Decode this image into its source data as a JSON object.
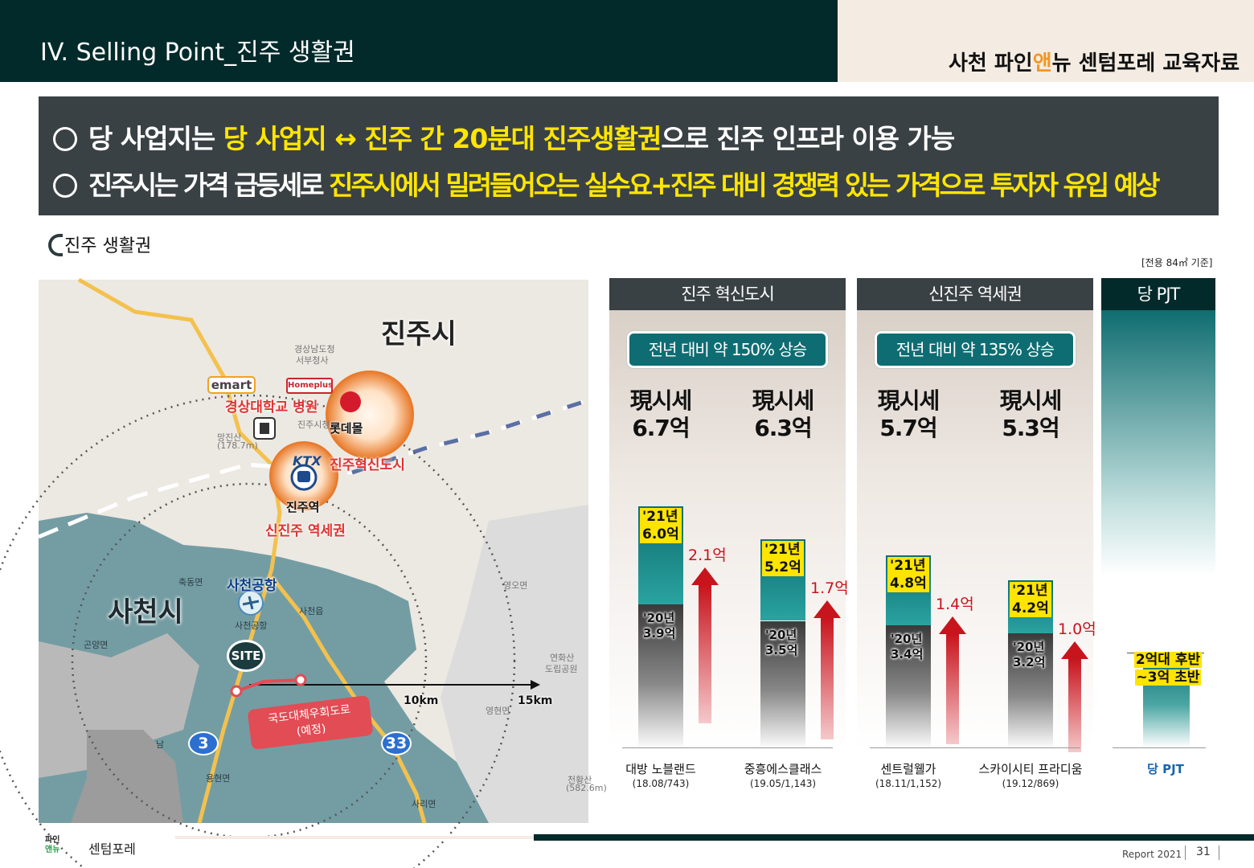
{
  "header": {
    "title": "IV. Selling Point_진주 생활권",
    "doc_title_pre": "사천 파인",
    "doc_title_accent": "앤",
    "doc_title_post": "뉴 센텀포레 교육자료",
    "accent_color": "#f39623"
  },
  "banner": {
    "line1": {
      "pre": "당 사업지는 ",
      "highlight": "당 사업지 ↔ 진주 간 20분대 진주생활권",
      "post": "으로 진주 인프라 이용 가능"
    },
    "line2": {
      "pre": "진주시는 가격 급등세로 ",
      "highlight1": "진주시에서 밀려들어오는 실수요",
      "mid": "+",
      "highlight2": "진주 대비 경쟁력 있는 가격으로 투자자 유입 예상"
    },
    "highlight_color": "#ffe600"
  },
  "section": {
    "title": "진주 생활권",
    "basis": "[전용 84㎡ 기준]"
  },
  "map": {
    "city_jinju": "진주시",
    "city_sacheon": "사천시",
    "emart": "emart",
    "homeplus": "Homeplus",
    "hospital": "경상대학교 병원",
    "lotte_mall": "롯데몰",
    "ktx": "KTX",
    "jinju_innovation": "진주혁신도시",
    "jinju_station": "진주역",
    "new_jinju_station_area": "신진주 역세권",
    "sacheon_airport": "사천공항",
    "site": "SITE",
    "road_label_1": "국도대체우회도로",
    "road_label_2": "(예정)",
    "km10": "10km",
    "km15": "15km",
    "route3": "3",
    "route33": "33",
    "gray_labels": {
      "gov1": "경상남도청",
      "gov2": "서부청사",
      "city_hall": "진주시청",
      "mountain": "망진산",
      "mountain_h": "(178.7m)",
      "chukdong": "축동면",
      "sacheon_eup": "사천읍",
      "gonyang": "곤양면",
      "yeonghyeon": "영현면",
      "yeongo": "영오면",
      "park1": "연화산",
      "park2": "도립공원",
      "yonghyeon": "용현면",
      "sari": "사리면",
      "cheonhwang": "천황산",
      "cheonhwang_h": "(582.6m)",
      "airport_sub": "사천공항",
      "nam": "남"
    }
  },
  "panels": [
    {
      "name": "진주 혁신도시",
      "rise": "전년 대비 약 150% 상승",
      "complexes": [
        {
          "price_label": "現시세",
          "price": "6.7억",
          "y21_label": "'21년",
          "y21": 6.0,
          "y21_text": "6.0억",
          "y20_label": "'20년",
          "y20": 3.9,
          "y20_text": "3.9억",
          "increase": "2.1억",
          "title": "대방 노블랜드",
          "date": "(18.08/743)"
        },
        {
          "price_label": "現시세",
          "price": "6.3억",
          "y21_label": "'21년",
          "y21": 5.2,
          "y21_text": "5.2억",
          "y20_label": "'20년",
          "y20": 3.5,
          "y20_text": "3.5억",
          "increase": "1.7억",
          "title": "중흥에스클래스",
          "date": "(19.05/1,143)"
        }
      ]
    },
    {
      "name": "신진주 역세권",
      "rise": "전년 대비 약 135% 상승",
      "complexes": [
        {
          "price_label": "現시세",
          "price": "5.7억",
          "y21_label": "'21년",
          "y21": 4.8,
          "y21_text": "4.8억",
          "y20_label": "'20년",
          "y20": 3.4,
          "y20_text": "3.4억",
          "increase": "1.4억",
          "title": "센트럴웰가",
          "date": "(18.11/1,152)"
        },
        {
          "price_label": "現시세",
          "price": "5.3억",
          "y21_label": "'21년",
          "y21": 4.2,
          "y21_text": "4.2억",
          "y20_label": "'20년",
          "y20": 3.2,
          "y20_text": "3.2억",
          "increase": "1.0억",
          "title": "스카이시티 프라디움",
          "date": "(19.12/869)"
        }
      ]
    }
  ],
  "our_project": {
    "header": "당 PJT",
    "price_line1": "2억대 후반",
    "price_line2": "~3억 초반",
    "title": "당 PJT"
  },
  "footer": {
    "logo_top": "파인",
    "logo_bottom": "앤뉴",
    "brand": "센텀포레",
    "report": "Report 2021",
    "page": "31"
  }
}
